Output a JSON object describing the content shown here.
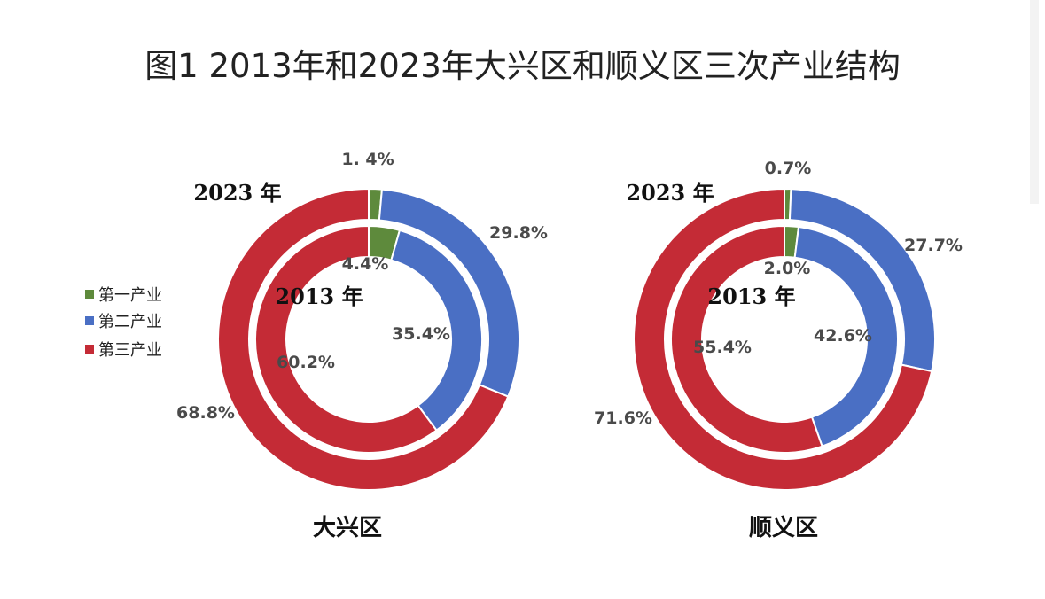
{
  "title": "图1 2013年和2023年大兴区和顺义区三次产业结构",
  "legend": [
    {
      "label": "第一产业",
      "color": "#5e8a3c"
    },
    {
      "label": "第二产业",
      "color": "#4a6fc4"
    },
    {
      "label": "第三产业",
      "color": "#c42b36"
    }
  ],
  "chart_data": [
    {
      "type": "donut",
      "district": "大兴区",
      "outer_ring_label": "2023 年",
      "inner_ring_label": "2013 年",
      "categories": [
        "第一产业",
        "第二产业",
        "第三产业"
      ],
      "series": [
        {
          "name": "2023 年",
          "values": [
            1.4,
            29.8,
            68.8
          ],
          "labels": [
            "1. 4%",
            "29.8%",
            "68.8%"
          ]
        },
        {
          "name": "2013 年",
          "values": [
            4.4,
            35.4,
            60.2
          ],
          "labels": [
            "4.4%",
            "35.4%",
            "60.2%"
          ]
        }
      ]
    },
    {
      "type": "donut",
      "district": "顺义区",
      "outer_ring_label": "2023 年",
      "inner_ring_label": "2013 年",
      "categories": [
        "第一产业",
        "第二产业",
        "第三产业"
      ],
      "series": [
        {
          "name": "2023 年",
          "values": [
            0.7,
            27.7,
            71.6
          ],
          "labels": [
            "0.7%",
            "27.7%",
            "71.6%"
          ]
        },
        {
          "name": "2013 年",
          "values": [
            2.0,
            42.6,
            55.4
          ],
          "labels": [
            "2.0%",
            "42.6%",
            "55.4%"
          ]
        }
      ]
    }
  ]
}
